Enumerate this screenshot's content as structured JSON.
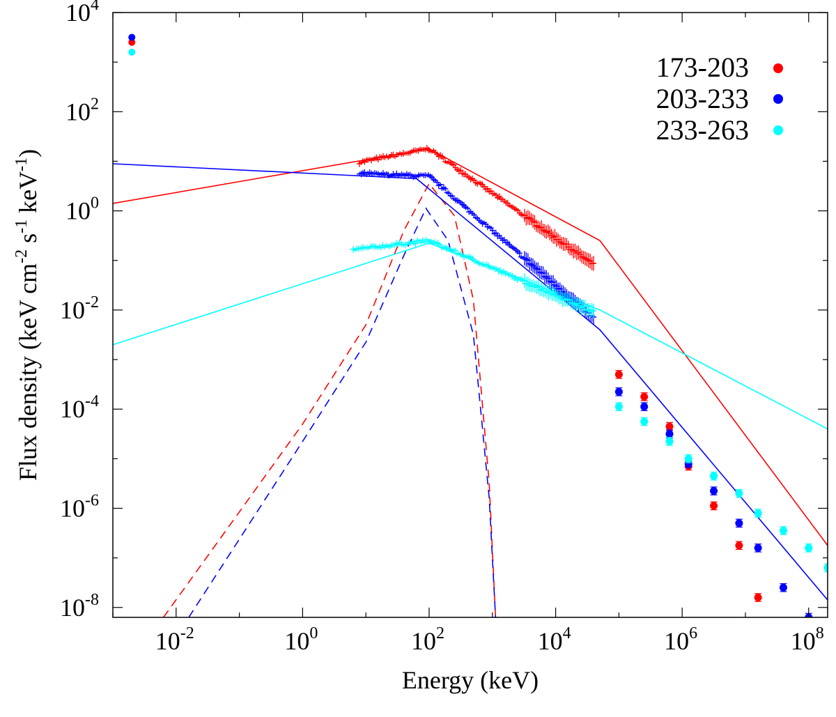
{
  "chart_data": {
    "type": "scatter",
    "scale": "log-log",
    "title": "",
    "xlabel": "Energy (keV)",
    "ylabel_parts": {
      "a": "Flux density (keV cm",
      "e1": "-2",
      "b": " s",
      "e2": "-1",
      "c": " keV",
      "e3": "-1",
      "d": ")"
    },
    "xlim_log10": [
      -3,
      8.3
    ],
    "ylim_log10": [
      -8.2,
      4
    ],
    "x_ticks": [
      {
        "base": "10",
        "exp": "-2",
        "log10": -2
      },
      {
        "base": "10",
        "exp": "0",
        "log10": 0
      },
      {
        "base": "10",
        "exp": "2",
        "log10": 2
      },
      {
        "base": "10",
        "exp": "4",
        "log10": 4
      },
      {
        "base": "10",
        "exp": "6",
        "log10": 6
      },
      {
        "base": "10",
        "exp": "8",
        "log10": 8
      }
    ],
    "y_ticks": [
      {
        "base": "10",
        "exp": "4",
        "log10": 4
      },
      {
        "base": "10",
        "exp": "2",
        "log10": 2
      },
      {
        "base": "10",
        "exp": "0",
        "log10": 0
      },
      {
        "base": "10",
        "exp": "-2",
        "log10": -2
      },
      {
        "base": "10",
        "exp": "-4",
        "log10": -4
      },
      {
        "base": "10",
        "exp": "-6",
        "log10": -6
      },
      {
        "base": "10",
        "exp": "-8",
        "log10": -8
      }
    ],
    "legend_position": "top-right",
    "series": [
      {
        "name": "173-203",
        "color": "#ff0000",
        "fermi_band": {
          "amplitude": 18,
          "log10_range": [
            0.9,
            4.6
          ],
          "peak_log10": 2.0,
          "alpha_slope": 0.25,
          "beta_slope": -0.9
        },
        "high_energy_points": [
          {
            "x_log10": 5.0,
            "y_log10": -3.3
          },
          {
            "x_log10": 5.4,
            "y_log10": -3.75
          },
          {
            "x_log10": 5.8,
            "y_log10": -4.35
          },
          {
            "x_log10": 6.1,
            "y_log10": -5.15
          },
          {
            "x_log10": 6.5,
            "y_log10": -5.95
          },
          {
            "x_log10": 6.9,
            "y_log10": -6.75
          },
          {
            "x_log10": 7.2,
            "y_log10": -7.8
          }
        ],
        "upper_left_point": {
          "x_log10": -2.7,
          "y_log10": 3.4
        },
        "powerlaw_line": [
          [
            -3,
            0.15
          ],
          [
            2.0,
            1.25
          ],
          [
            4.7,
            -0.6
          ],
          [
            8.3,
            -6.75
          ]
        ],
        "dashed_component": [
          [
            -2.2,
            -8.2
          ],
          [
            0,
            -4.3
          ],
          [
            1,
            -2.3
          ],
          [
            1.6,
            -0.4
          ],
          [
            2.0,
            0.55
          ],
          [
            2.4,
            -0.1
          ],
          [
            2.7,
            -1.8
          ],
          [
            2.95,
            -5.5
          ],
          [
            3.05,
            -8.2
          ]
        ]
      },
      {
        "name": "203-233",
        "color": "#0000ff",
        "fermi_band": {
          "amplitude": 5,
          "log10_range": [
            0.9,
            4.6
          ],
          "peak_log10": 2.0,
          "alpha_slope": -0.05,
          "beta_slope": -1.1
        },
        "high_energy_points": [
          {
            "x_log10": 5.0,
            "y_log10": -3.65
          },
          {
            "x_log10": 5.4,
            "y_log10": -3.95
          },
          {
            "x_log10": 5.8,
            "y_log10": -4.5
          },
          {
            "x_log10": 6.1,
            "y_log10": -5.1
          },
          {
            "x_log10": 6.5,
            "y_log10": -5.65
          },
          {
            "x_log10": 6.9,
            "y_log10": -6.3
          },
          {
            "x_log10": 7.2,
            "y_log10": -6.8
          },
          {
            "x_log10": 7.6,
            "y_log10": -7.6
          },
          {
            "x_log10": 8.0,
            "y_log10": -8.2
          }
        ],
        "upper_left_point": {
          "x_log10": -2.7,
          "y_log10": 3.5
        },
        "powerlaw_line": [
          [
            -3,
            0.95
          ],
          [
            1.8,
            0.65
          ],
          [
            4.7,
            -2.4
          ],
          [
            8.3,
            -7.85
          ]
        ],
        "dashed_component": [
          [
            -1.8,
            -8.2
          ],
          [
            0,
            -4.65
          ],
          [
            1,
            -2.65
          ],
          [
            1.6,
            -0.9
          ],
          [
            1.95,
            0.05
          ],
          [
            2.3,
            -0.6
          ],
          [
            2.7,
            -2.5
          ],
          [
            2.95,
            -5.8
          ],
          [
            3.05,
            -8.2
          ]
        ]
      },
      {
        "name": "233-263",
        "color": "#00ffff",
        "fermi_band": {
          "amplitude": 0.25,
          "log10_range": [
            0.8,
            4.6
          ],
          "peak_log10": 2.0,
          "alpha_slope": 0.15,
          "beta_slope": -0.55
        },
        "high_energy_points": [
          {
            "x_log10": 5.0,
            "y_log10": -3.95
          },
          {
            "x_log10": 5.4,
            "y_log10": -4.25
          },
          {
            "x_log10": 5.8,
            "y_log10": -4.65
          },
          {
            "x_log10": 6.1,
            "y_log10": -5.0
          },
          {
            "x_log10": 6.5,
            "y_log10": -5.35
          },
          {
            "x_log10": 6.9,
            "y_log10": -5.7
          },
          {
            "x_log10": 7.2,
            "y_log10": -6.1
          },
          {
            "x_log10": 7.6,
            "y_log10": -6.45
          },
          {
            "x_log10": 8.0,
            "y_log10": -6.8
          },
          {
            "x_log10": 8.3,
            "y_log10": -7.2
          }
        ],
        "upper_left_point": {
          "x_log10": -2.7,
          "y_log10": 3.2
        },
        "powerlaw_line": [
          [
            -3,
            -2.7
          ],
          [
            2.0,
            -0.65
          ],
          [
            4.7,
            -2.0
          ],
          [
            8.3,
            -4.4
          ]
        ],
        "dashed_component": null
      }
    ]
  }
}
